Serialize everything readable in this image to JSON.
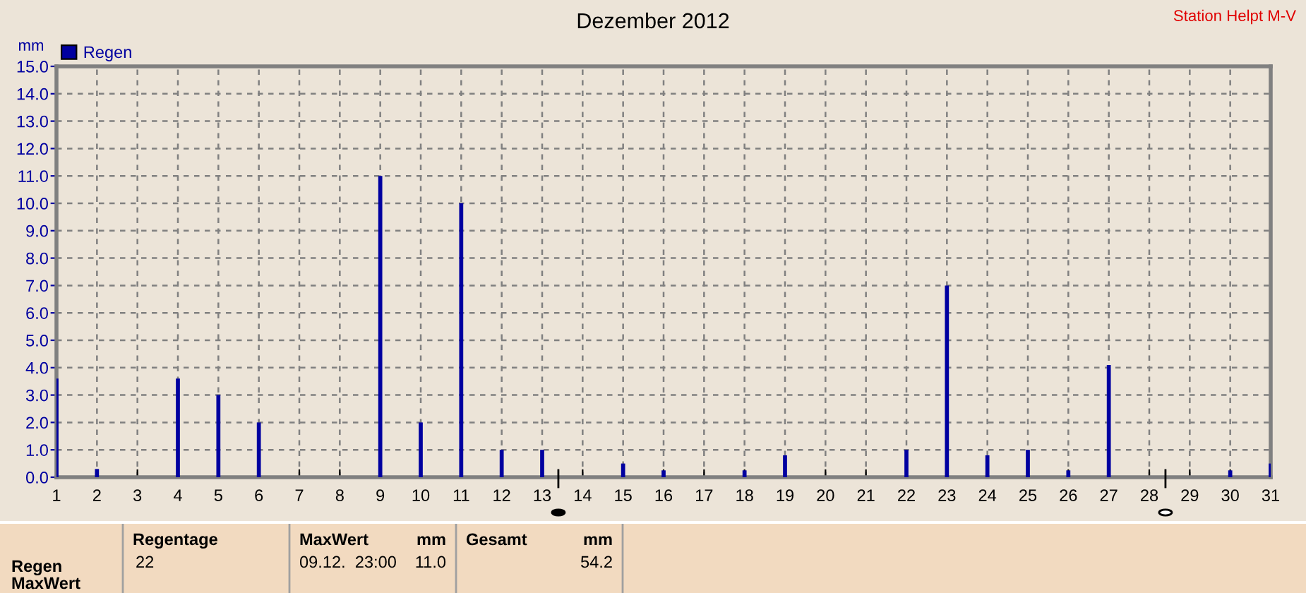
{
  "chart_data": {
    "type": "bar",
    "title": "Dezember 2012",
    "ylabel": "mm",
    "x": [
      1,
      2,
      4,
      5,
      6,
      9,
      10,
      11,
      12,
      13,
      15,
      16,
      18,
      19,
      22,
      23,
      24,
      25,
      26,
      27,
      30,
      31
    ],
    "series": [
      {
        "name": "Regen",
        "color": "#0000a0",
        "values": [
          3.6,
          0.3,
          3.6,
          3.0,
          2.0,
          11.0,
          2.0,
          10.0,
          1.0,
          1.0,
          0.5,
          0.25,
          0.25,
          0.8,
          1.0,
          7.0,
          0.8,
          1.0,
          0.25,
          4.1,
          0.25,
          0.5
        ]
      }
    ],
    "xlim": [
      1,
      31
    ],
    "xticks": [
      1,
      2,
      3,
      4,
      5,
      6,
      7,
      8,
      9,
      10,
      11,
      12,
      13,
      14,
      15,
      16,
      17,
      18,
      19,
      20,
      21,
      22,
      23,
      24,
      25,
      26,
      27,
      28,
      29,
      30,
      31
    ],
    "ylim": [
      0,
      15
    ],
    "yticks": [
      {
        "value": 0,
        "label": "0.0"
      },
      {
        "value": 1,
        "label": "1.0"
      },
      {
        "value": 2,
        "label": "2.0"
      },
      {
        "value": 3,
        "label": "3.0"
      },
      {
        "value": 4,
        "label": "4.0"
      },
      {
        "value": 5,
        "label": "5.0"
      },
      {
        "value": 6,
        "label": "6.0"
      },
      {
        "value": 7,
        "label": "7.0"
      },
      {
        "value": 8,
        "label": "8.0"
      },
      {
        "value": 9,
        "label": "9.0"
      },
      {
        "value": 10,
        "label": "10.0"
      },
      {
        "value": 11,
        "label": "11.0"
      },
      {
        "value": 12,
        "label": "12.0"
      },
      {
        "value": 13,
        "label": "13.0"
      },
      {
        "value": 14,
        "label": "14.0"
      },
      {
        "value": 15,
        "label": "15.0"
      }
    ],
    "grid": true,
    "legend": "top left",
    "annotations": [
      "Station Helpt M-V",
      "Regen",
      "MaxWert",
      "Regentage",
      "22",
      "MaxWert",
      "mm",
      "09.12.  23:00",
      "11.0",
      "Gesamt",
      "mm",
      "54.2"
    ]
  }
}
